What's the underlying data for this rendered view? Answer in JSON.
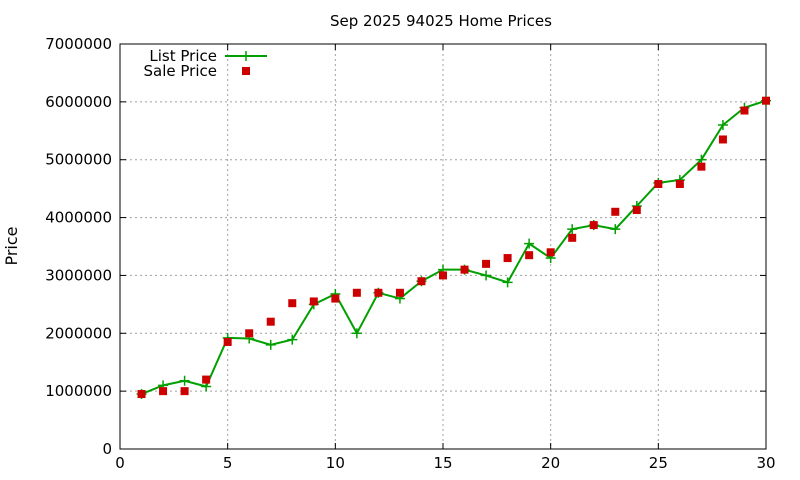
{
  "chart_data": {
    "type": "line",
    "title": "Sep 2025 94025 Home Prices",
    "xlabel": "",
    "ylabel": "Price",
    "xlim": [
      0,
      30
    ],
    "ylim": [
      0,
      7000000
    ],
    "xticks": [
      0,
      5,
      10,
      15,
      20,
      25,
      30
    ],
    "yticks": [
      0,
      1000000,
      2000000,
      3000000,
      4000000,
      5000000,
      6000000,
      7000000
    ],
    "xtick_labels": [
      "0",
      "5",
      "10",
      "15",
      "20",
      "25",
      "30"
    ],
    "ytick_labels": [
      "0",
      "1000000",
      "2000000",
      "3000000",
      "4000000",
      "5000000",
      "6000000",
      "7000000"
    ],
    "grid": true,
    "legend_position": "top-left",
    "x": [
      1,
      2,
      3,
      4,
      5,
      6,
      7,
      8,
      9,
      10,
      11,
      12,
      13,
      14,
      15,
      16,
      17,
      18,
      19,
      20,
      21,
      22,
      23,
      24,
      25,
      26,
      27,
      28,
      29,
      30
    ],
    "series": [
      {
        "name": "List Price",
        "style": "lines+crosses",
        "color": "#00a000",
        "values": [
          950000,
          1100000,
          1180000,
          1080000,
          1920000,
          1910000,
          1800000,
          1890000,
          2500000,
          2680000,
          2000000,
          2700000,
          2600000,
          2900000,
          3100000,
          3100000,
          3000000,
          2880000,
          3550000,
          3300000,
          3800000,
          3870000,
          3800000,
          4200000,
          4600000,
          4650000,
          5000000,
          5600000,
          5900000,
          6020000
        ]
      },
      {
        "name": "Sale Price",
        "style": "squares",
        "color": "#cc0000",
        "values": [
          950000,
          1000000,
          1000000,
          1200000,
          1850000,
          2000000,
          2200000,
          2520000,
          2550000,
          2600000,
          2700000,
          2700000,
          2700000,
          2900000,
          3000000,
          3100000,
          3200000,
          3300000,
          3350000,
          3400000,
          3650000,
          3870000,
          4100000,
          4130000,
          4580000,
          4580000,
          4880000,
          5350000,
          5850000,
          6020000
        ]
      }
    ]
  }
}
